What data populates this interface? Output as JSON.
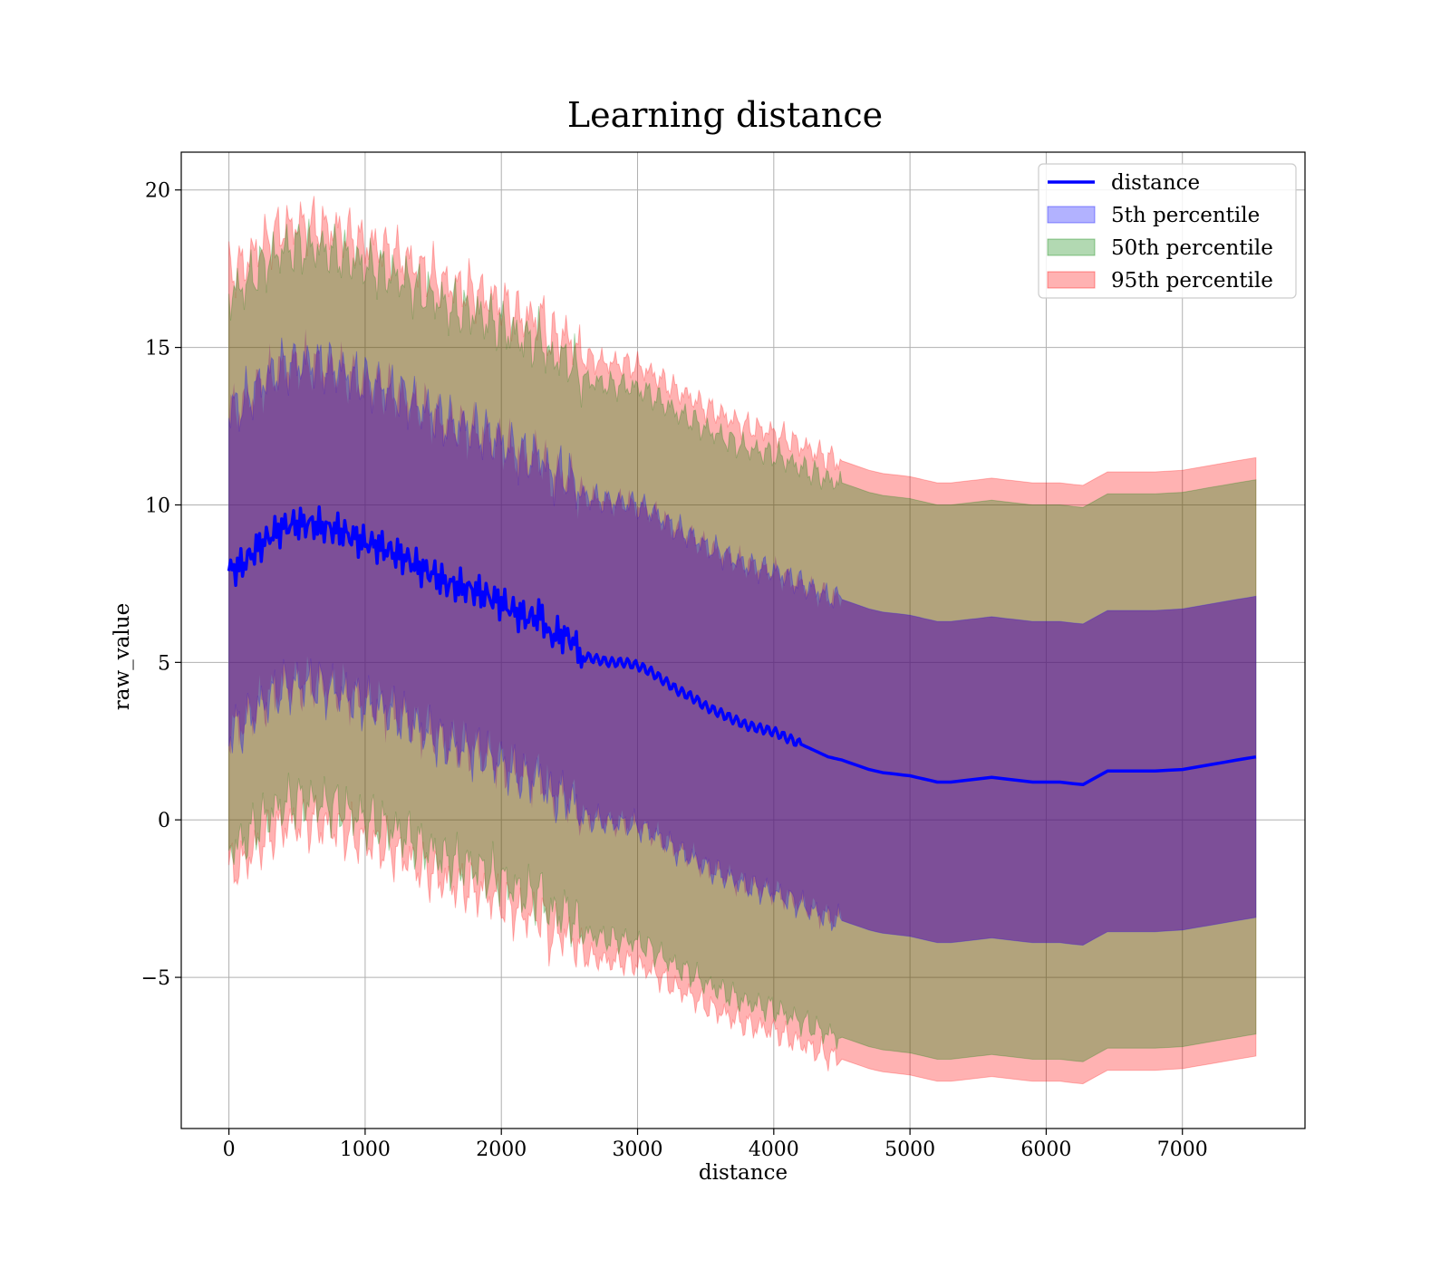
{
  "chart_data": {
    "type": "line",
    "title": "Learning distance",
    "xlabel": "distance",
    "ylabel": "raw_value",
    "xlim": [
      -350,
      7900
    ],
    "ylim": [
      -9.8,
      21.2
    ],
    "xticks": [
      0,
      1000,
      2000,
      3000,
      4000,
      5000,
      6000,
      7000
    ],
    "yticks": [
      -5,
      0,
      5,
      10,
      15,
      20
    ],
    "xtick_labels": [
      "0",
      "1000",
      "2000",
      "3000",
      "4000",
      "5000",
      "6000",
      "7000"
    ],
    "ytick_labels": [
      "−5",
      "0",
      "5",
      "10",
      "15",
      "20"
    ],
    "grid": true,
    "legend_position": "upper right",
    "line": {
      "name": "distance",
      "color": "#0000ff",
      "x": [
        0,
        100,
        200,
        300,
        400,
        500,
        600,
        700,
        800,
        900,
        1000,
        1100,
        1200,
        1300,
        1400,
        1500,
        1600,
        1700,
        1800,
        1900,
        2000,
        2100,
        2200,
        2300,
        2350,
        2400,
        2500,
        2600,
        2700,
        2800,
        2900,
        3000,
        3100,
        3200,
        3300,
        3400,
        3500,
        3600,
        3700,
        3800,
        3900,
        4000,
        4100,
        4200,
        4300,
        4400,
        4500,
        4600,
        4700,
        4800,
        4900,
        5000,
        5100,
        5200,
        5300,
        5400,
        5500,
        5600,
        5700,
        5800,
        5900,
        6000,
        6100,
        6200,
        6270,
        6450,
        6600,
        6800,
        7000,
        7200,
        7400,
        7540
      ],
      "y": [
        7.9,
        8.1,
        8.6,
        9.0,
        9.3,
        9.4,
        9.4,
        9.3,
        9.2,
        9.0,
        8.8,
        8.7,
        8.5,
        8.3,
        8.0,
        7.8,
        7.5,
        7.4,
        7.3,
        7.1,
        6.9,
        6.6,
        6.4,
        6.5,
        5.8,
        5.9,
        5.8,
        5.2,
        5.1,
        5.0,
        5.0,
        4.9,
        4.7,
        4.4,
        4.1,
        3.9,
        3.6,
        3.4,
        3.2,
        3.0,
        2.9,
        2.8,
        2.6,
        2.4,
        2.2,
        2.0,
        1.9,
        1.75,
        1.6,
        1.5,
        1.45,
        1.4,
        1.3,
        1.2,
        1.2,
        1.25,
        1.3,
        1.35,
        1.3,
        1.25,
        1.2,
        1.2,
        1.2,
        1.15,
        1.12,
        1.55,
        1.55,
        1.55,
        1.6,
        1.75,
        1.9,
        2.0
      ]
    },
    "bands": [
      {
        "name": "95th percentile",
        "color": "#ff0000",
        "opacity": 0.3,
        "half_width": 9.5
      },
      {
        "name": "50th percentile",
        "color": "#008000",
        "opacity": 0.3,
        "half_width": 8.8
      },
      {
        "name": "5th percentile",
        "color": "#0000ff",
        "opacity": 0.3,
        "half_width": 5.1
      }
    ],
    "purple_overlay": {
      "color": "#800080",
      "opacity": 0.3
    },
    "legend": [
      {
        "label": "distance",
        "kind": "line",
        "color": "#0000ff"
      },
      {
        "label": "5th percentile",
        "kind": "patch",
        "color": "#0000ff"
      },
      {
        "label": "50th percentile",
        "kind": "patch",
        "color": "#008000"
      },
      {
        "label": "95th percentile",
        "kind": "patch",
        "color": "#ff0000"
      }
    ]
  }
}
